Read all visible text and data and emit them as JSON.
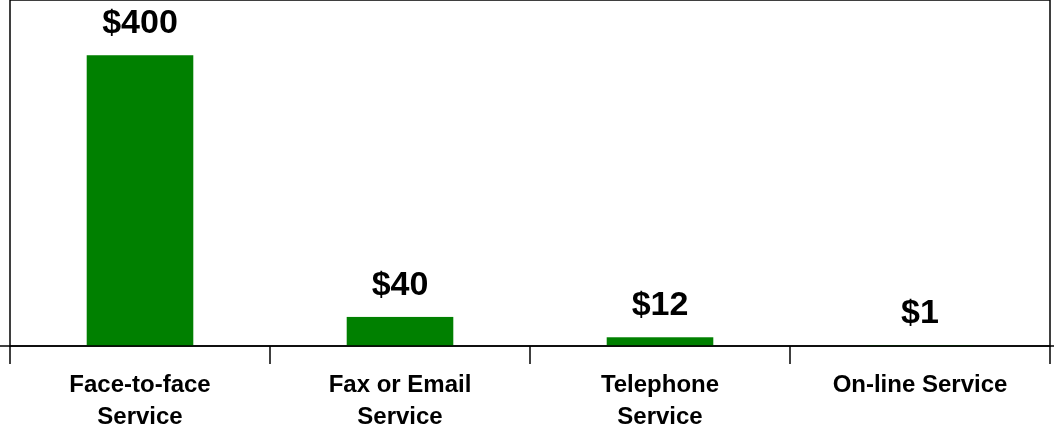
{
  "chart_data": {
    "type": "bar",
    "categories": [
      "Face-to-face\nService",
      "Fax or Email\nService",
      "Telephone\nService",
      "On-line Service"
    ],
    "values": [
      400,
      40,
      12,
      1
    ],
    "value_labels": [
      "$400",
      "$40",
      "$12",
      "$1"
    ],
    "color": "#008000"
  }
}
